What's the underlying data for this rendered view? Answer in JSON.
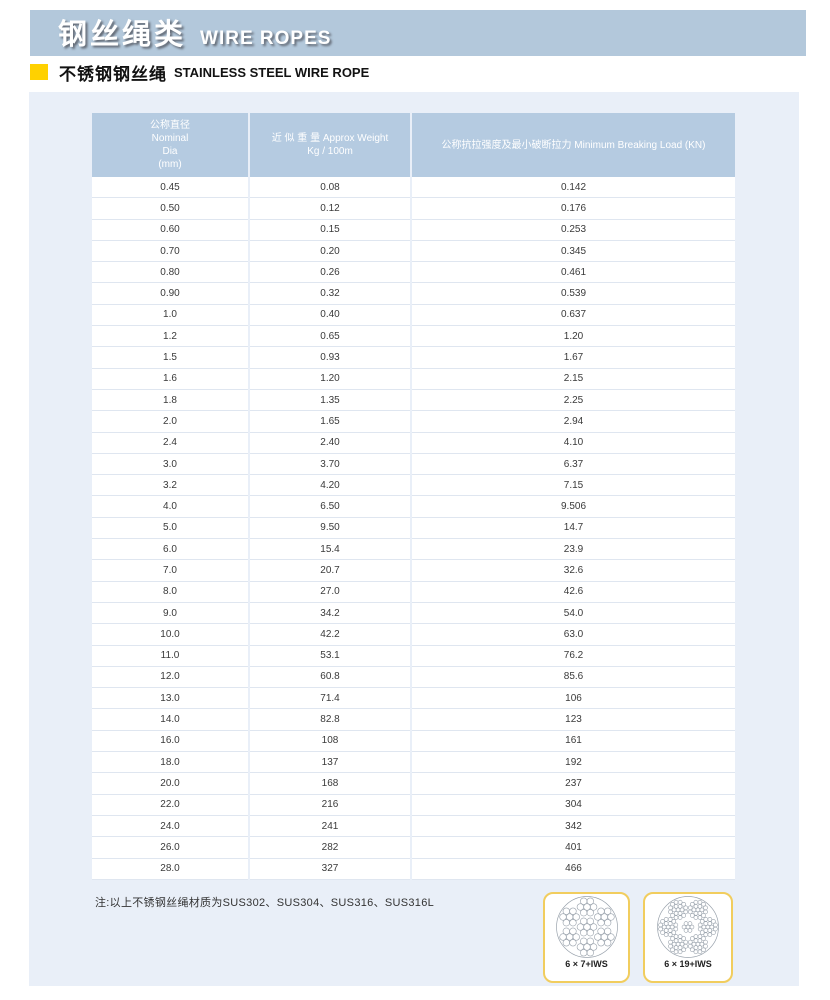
{
  "page": {
    "title_zh": "钢丝绳类",
    "title_en": "WIRE ROPES",
    "subtitle_zh": "不锈钢钢丝绳",
    "subtitle_en": "STAINLESS STEEL WIRE ROPE"
  },
  "colors": {
    "header_bar": "#b3c8db",
    "table_header": "#b5cbe1",
    "panel": "#e9eff8",
    "accent_yellow": "#ffd100",
    "card_border": "#f1cd5e"
  },
  "table": {
    "header_col1": [
      "公称直径",
      "Nominal",
      "Dia",
      "(mm)"
    ],
    "header_col2": [
      "近 似 重 量 Approx Weight",
      "Kg / 100m"
    ],
    "header_col3": [
      "公称抗拉强度及最小破断拉力 Minimum Breaking Load (KN)"
    ],
    "rows": [
      [
        "0.45",
        "0.08",
        "0.142"
      ],
      [
        "0.50",
        "0.12",
        "0.176"
      ],
      [
        "0.60",
        "0.15",
        "0.253"
      ],
      [
        "0.70",
        "0.20",
        "0.345"
      ],
      [
        "0.80",
        "0.26",
        "0.461"
      ],
      [
        "0.90",
        "0.32",
        "0.539"
      ],
      [
        "1.0",
        "0.40",
        "0.637"
      ],
      [
        "1.2",
        "0.65",
        "1.20"
      ],
      [
        "1.5",
        "0.93",
        "1.67"
      ],
      [
        "1.6",
        "1.20",
        "2.15"
      ],
      [
        "1.8",
        "1.35",
        "2.25"
      ],
      [
        "2.0",
        "1.65",
        "2.94"
      ],
      [
        "2.4",
        "2.40",
        "4.10"
      ],
      [
        "3.0",
        "3.70",
        "6.37"
      ],
      [
        "3.2",
        "4.20",
        "7.15"
      ],
      [
        "4.0",
        "6.50",
        "9.506"
      ],
      [
        "5.0",
        "9.50",
        "14.7"
      ],
      [
        "6.0",
        "15.4",
        "23.9"
      ],
      [
        "7.0",
        "20.7",
        "32.6"
      ],
      [
        "8.0",
        "27.0",
        "42.6"
      ],
      [
        "9.0",
        "34.2",
        "54.0"
      ],
      [
        "10.0",
        "42.2",
        "63.0"
      ],
      [
        "11.0",
        "53.1",
        "76.2"
      ],
      [
        "12.0",
        "60.8",
        "85.6"
      ],
      [
        "13.0",
        "71.4",
        "106"
      ],
      [
        "14.0",
        "82.8",
        "123"
      ],
      [
        "16.0",
        "108",
        "161"
      ],
      [
        "18.0",
        "137",
        "192"
      ],
      [
        "20.0",
        "168",
        "237"
      ],
      [
        "22.0",
        "216",
        "304"
      ],
      [
        "24.0",
        "241",
        "342"
      ],
      [
        "26.0",
        "282",
        "401"
      ],
      [
        "28.0",
        "327",
        "466"
      ]
    ]
  },
  "note": "注:以上不锈钢丝绳材质为SUS302、SUS304、SUS316、SUS316L",
  "diagrams": [
    {
      "label": "6 × 7+IWS",
      "type": "6x7"
    },
    {
      "label": "6 × 19+IWS",
      "type": "6x19"
    }
  ]
}
